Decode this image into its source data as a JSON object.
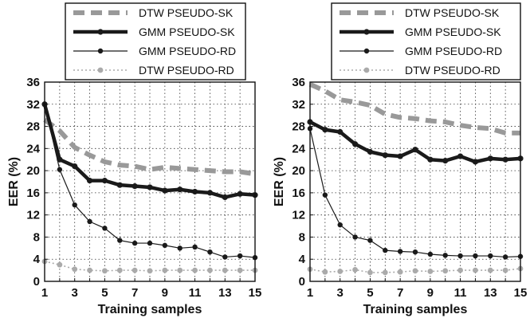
{
  "chart_data": [
    {
      "type": "line",
      "title": "",
      "xlabel": "Training samples",
      "ylabel": "EER (%)",
      "xlim": [
        1,
        15
      ],
      "ylim": [
        0,
        36
      ],
      "xticks": [
        1,
        3,
        5,
        7,
        9,
        11,
        13,
        15
      ],
      "yticks": [
        0,
        4,
        8,
        12,
        16,
        20,
        24,
        28,
        32,
        36
      ],
      "grid": true,
      "legend_position": "top",
      "x": [
        1,
        2,
        3,
        4,
        5,
        6,
        7,
        8,
        9,
        10,
        11,
        12,
        13,
        14,
        15
      ],
      "series": [
        {
          "name": "DTW PSEUDO-SK",
          "color": "#999999",
          "style": "dashed-thick",
          "values": [
            29.2,
            27.2,
            24.2,
            22.8,
            21.6,
            21.0,
            20.8,
            20.2,
            20.6,
            20.4,
            20.2,
            20.0,
            19.8,
            19.8,
            19.4
          ]
        },
        {
          "name": "GMM PSEUDO-SK",
          "color": "#1a1a1a",
          "style": "solid-thick",
          "values": [
            32.0,
            22.0,
            20.8,
            18.2,
            18.2,
            17.4,
            17.2,
            17.0,
            16.4,
            16.6,
            16.2,
            16.0,
            15.2,
            15.8,
            15.6
          ]
        },
        {
          "name": "GMM PSEUDO-RD",
          "color": "#1a1a1a",
          "style": "solid-thin",
          "values": [
            32.0,
            20.2,
            13.8,
            10.8,
            9.6,
            7.4,
            6.9,
            6.9,
            6.5,
            6.0,
            6.2,
            5.3,
            4.4,
            4.6,
            4.3
          ]
        },
        {
          "name": "DTW PSEUDO-RD",
          "color": "#aaaaaa",
          "style": "dotted-thin",
          "values": [
            3.6,
            3.0,
            2.2,
            2.0,
            1.9,
            2.0,
            2.0,
            1.9,
            2.0,
            2.0,
            2.0,
            2.0,
            2.0,
            2.0,
            2.0
          ]
        }
      ]
    },
    {
      "type": "line",
      "title": "",
      "xlabel": "Training samples",
      "ylabel": "EER (%)",
      "xlim": [
        1,
        15
      ],
      "ylim": [
        0,
        36
      ],
      "xticks": [
        1,
        3,
        5,
        7,
        9,
        11,
        13,
        15
      ],
      "yticks": [
        0,
        4,
        8,
        12,
        16,
        20,
        24,
        28,
        32,
        36
      ],
      "grid": true,
      "legend_position": "top",
      "x": [
        1,
        2,
        3,
        4,
        5,
        6,
        7,
        8,
        9,
        10,
        11,
        12,
        13,
        14,
        15
      ],
      "series": [
        {
          "name": "DTW PSEUDO-SK",
          "color": "#999999",
          "style": "dashed-thick",
          "values": [
            35.6,
            34.4,
            32.8,
            32.4,
            31.8,
            30.2,
            29.6,
            29.4,
            29.0,
            28.8,
            28.2,
            27.8,
            27.6,
            26.8,
            26.8
          ]
        },
        {
          "name": "GMM PSEUDO-SK",
          "color": "#1a1a1a",
          "style": "solid-thick",
          "values": [
            28.8,
            27.4,
            27.0,
            24.8,
            23.4,
            22.8,
            22.6,
            23.8,
            22.0,
            21.8,
            22.6,
            21.6,
            22.2,
            22.0,
            22.2
          ]
        },
        {
          "name": "GMM PSEUDO-RD",
          "color": "#1a1a1a",
          "style": "solid-thin",
          "values": [
            27.6,
            15.6,
            10.2,
            8.0,
            7.4,
            5.6,
            5.4,
            5.3,
            4.9,
            4.7,
            4.6,
            4.6,
            4.6,
            4.4,
            4.5
          ]
        },
        {
          "name": "DTW PSEUDO-RD",
          "color": "#aaaaaa",
          "style": "dotted-thin",
          "values": [
            2.2,
            1.7,
            1.8,
            2.1,
            1.6,
            1.6,
            1.7,
            1.9,
            1.8,
            1.9,
            2.0,
            2.0,
            2.0,
            2.0,
            2.3
          ]
        }
      ]
    }
  ]
}
